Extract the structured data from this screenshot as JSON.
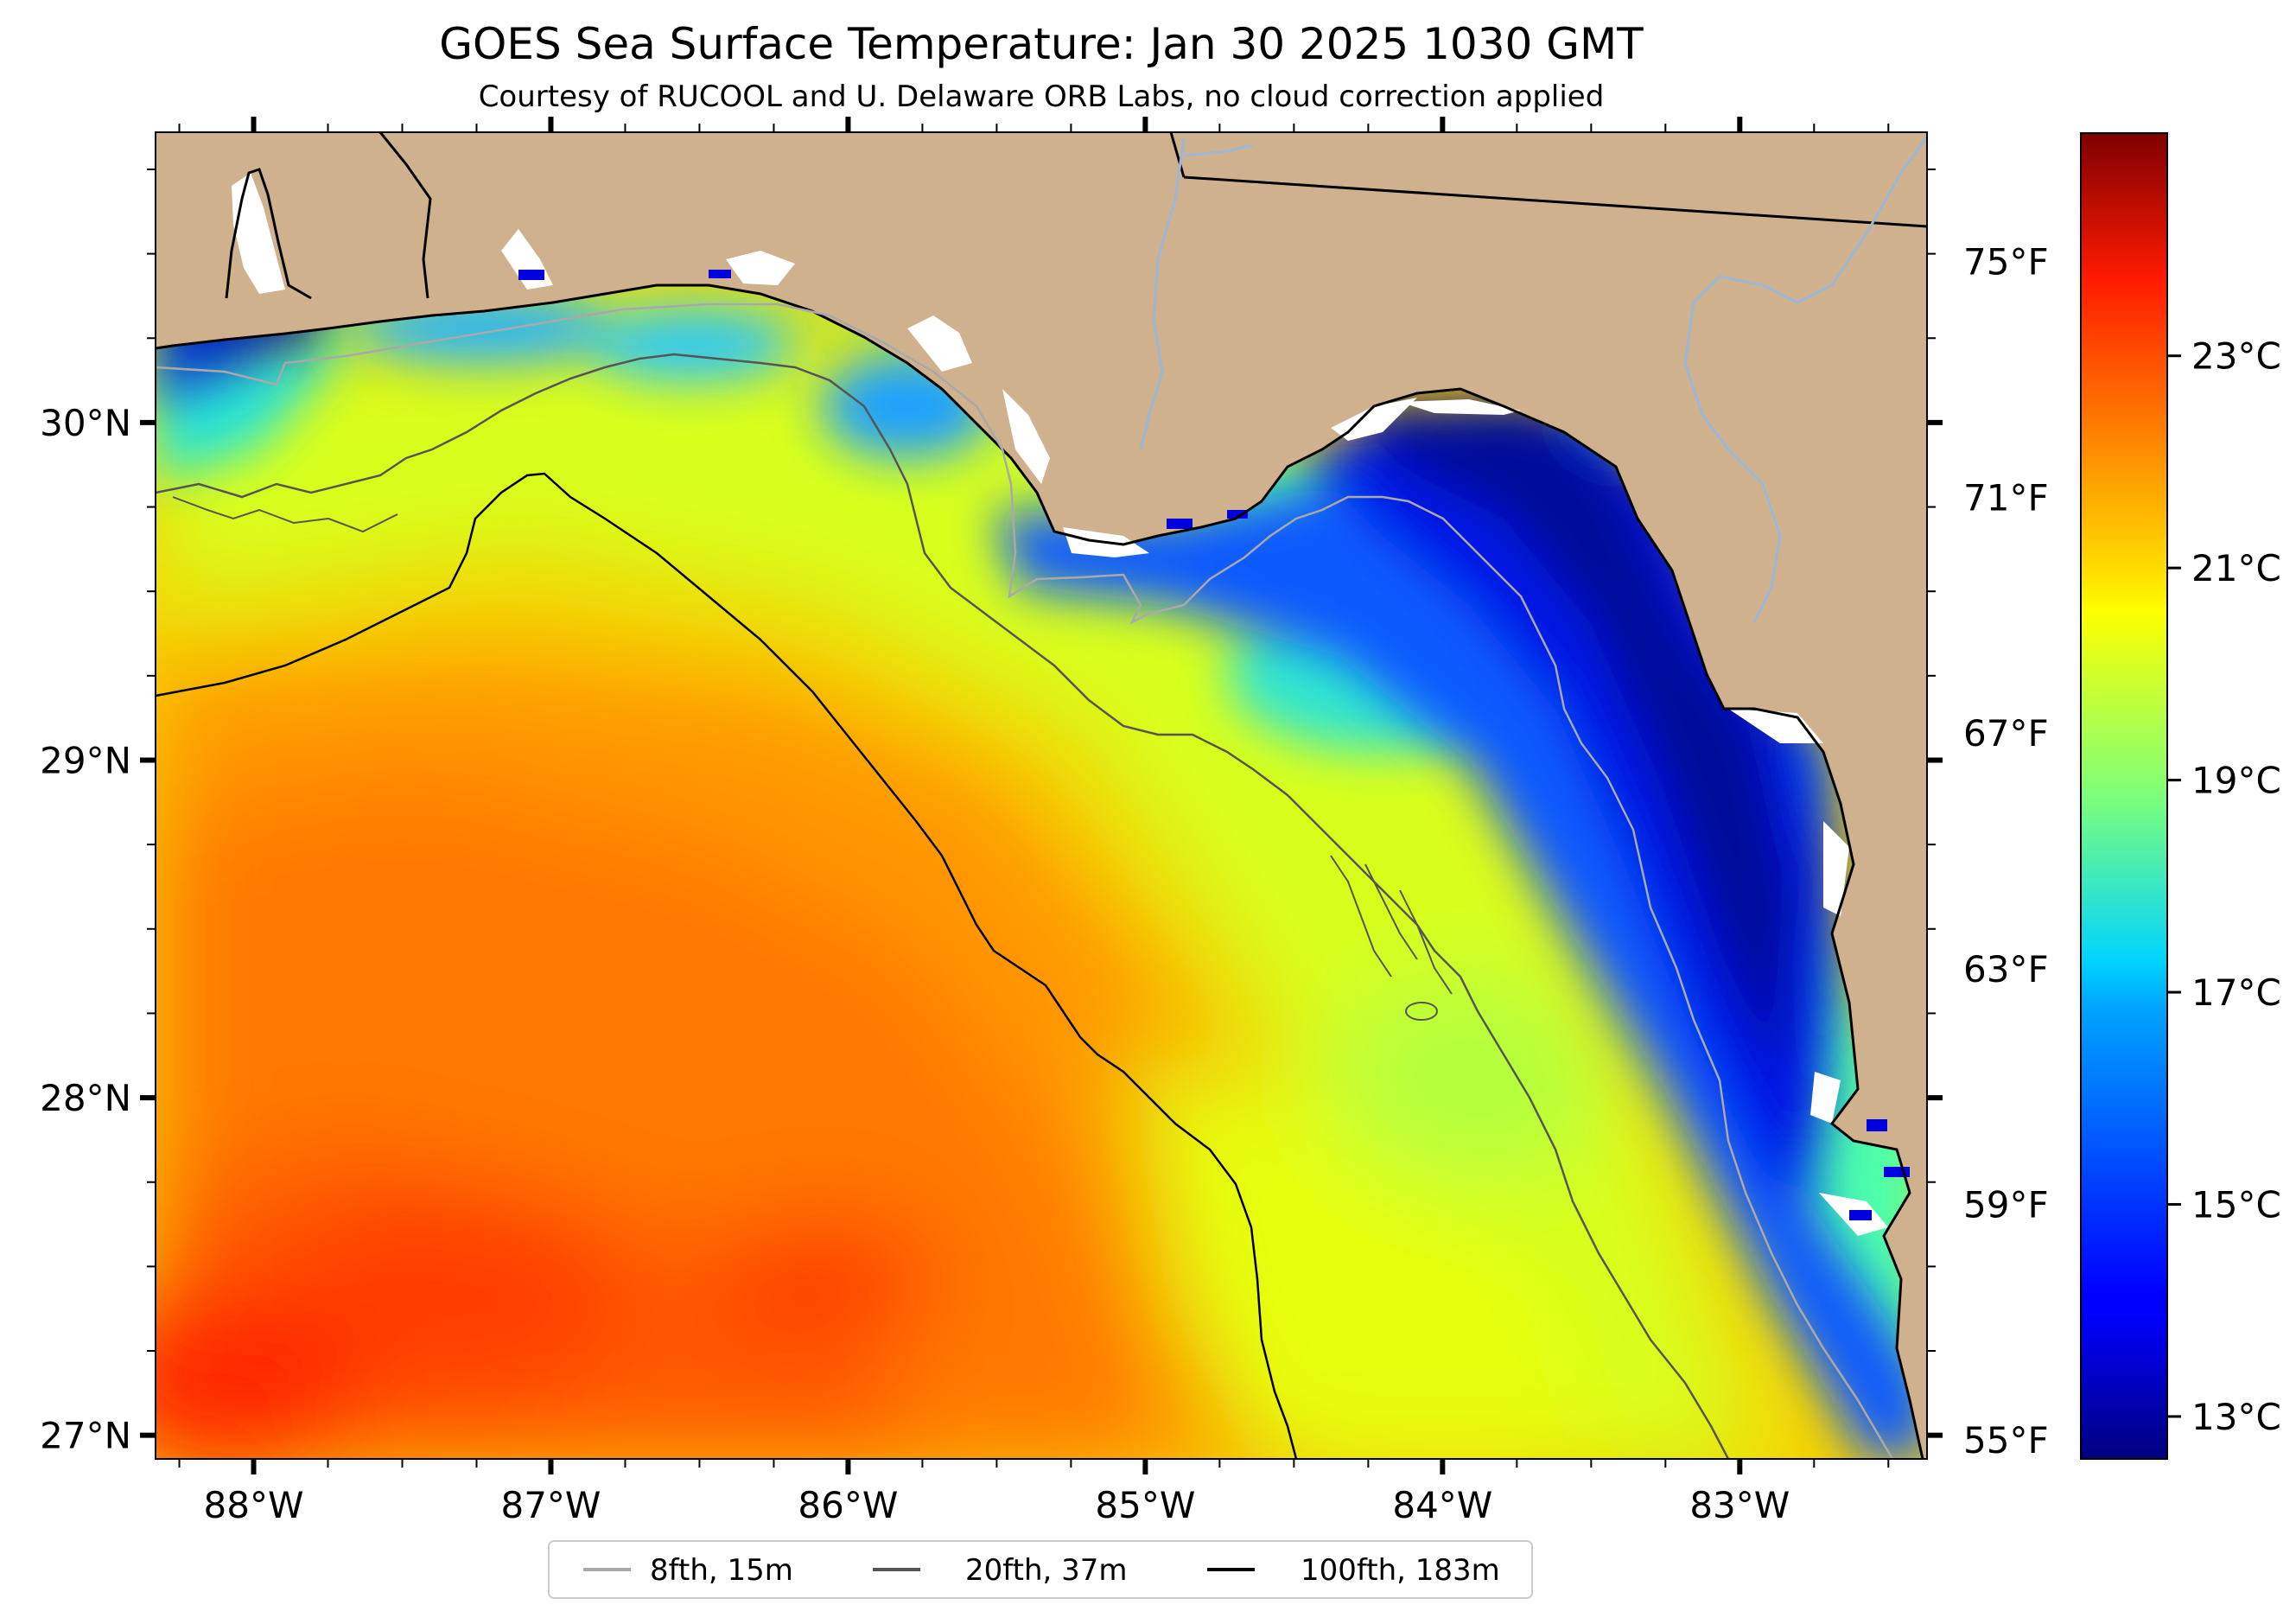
{
  "title": "GOES Sea Surface Temperature: Jan 30 2025 1030 GMT",
  "subtitle": "Courtesy of RUCOOL and U. Delaware ORB Labs, no cloud correction applied",
  "map": {
    "projection": "plate carree",
    "lon_range": [
      -88.33,
      -82.37
    ],
    "lat_range": [
      26.93,
      30.86
    ],
    "x_ticks": [
      {
        "lon": -88,
        "label": "88°W"
      },
      {
        "lon": -87,
        "label": "87°W"
      },
      {
        "lon": -86,
        "label": "86°W"
      },
      {
        "lon": -85,
        "label": "85°W"
      },
      {
        "lon": -84,
        "label": "84°W"
      },
      {
        "lon": -83,
        "label": "83°W"
      }
    ],
    "y_ticks": [
      {
        "lat": 30,
        "label": "30°N"
      },
      {
        "lat": 29,
        "label": "29°N"
      },
      {
        "lat": 28,
        "label": "28°N"
      },
      {
        "lat": 27,
        "label": "27°N"
      }
    ],
    "land_color": "#cfb28d",
    "missing_data_color": "#ffffff",
    "coastline_color": "#000000",
    "river_color": "#9cb6d6"
  },
  "colorbar": {
    "colormap": "jet",
    "range_c": [
      12.6,
      25.1
    ],
    "celsius_ticks": [
      {
        "value": 13,
        "label": "13°C"
      },
      {
        "value": 15,
        "label": "15°C"
      },
      {
        "value": 17,
        "label": "17°C"
      },
      {
        "value": 19,
        "label": "19°C"
      },
      {
        "value": 21,
        "label": "21°C"
      },
      {
        "value": 23,
        "label": "23°C"
      }
    ],
    "fahrenheit_ticks": [
      {
        "value": 55,
        "label": "55°F"
      },
      {
        "value": 59,
        "label": "59°F"
      },
      {
        "value": 63,
        "label": "63°F"
      },
      {
        "value": 67,
        "label": "67°F"
      },
      {
        "value": 71,
        "label": "71°F"
      },
      {
        "value": 75,
        "label": "75°F"
      }
    ]
  },
  "legend": {
    "items": [
      {
        "label": "8fth, 15m",
        "color": "#a9a9a9"
      },
      {
        "label": "20fth, 37m",
        "color": "#555555"
      },
      {
        "label": "100fth, 183m",
        "color": "#000000"
      }
    ]
  }
}
